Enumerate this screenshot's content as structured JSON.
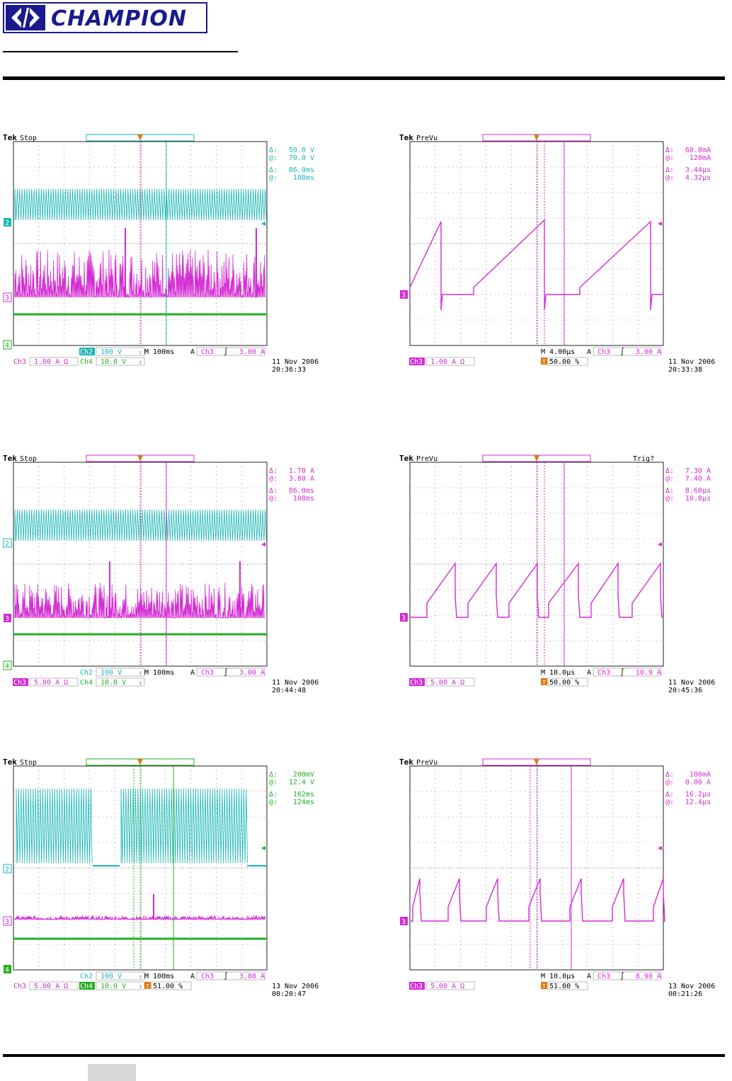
{
  "header": {
    "logo_text": "CHAMPION"
  },
  "scopes": [
    {
      "id": "s1",
      "brand": "Tek",
      "state": "Stop",
      "marker_color": "#1ab5b5",
      "readout": [
        {
          "color": "#1ab5b5",
          "d": "Δ:",
          "v": "50.0 V"
        },
        {
          "color": "#1ab5b5",
          "d": "@:",
          "v": "70.0 V"
        },
        {
          "color": "#1ab5b5",
          "d": "Δ:",
          "v": "86.0ms"
        },
        {
          "color": "#1ab5b5",
          "d": "@:",
          "v": "108ms"
        }
      ],
      "left_labels": [
        {
          "t": "2",
          "c": "#1ab5b5",
          "f": true
        },
        {
          "t": "3",
          "c": "#d42bd4",
          "f": false
        },
        {
          "t": "4",
          "c": "#22b022",
          "f": false
        }
      ],
      "bottom_ch": [
        {
          "n": "Ch2",
          "c": "#1ab5b5",
          "f": true,
          "v": "100 V",
          "s": "↕"
        },
        {
          "n": "Ch3",
          "c": "#d42bd4",
          "f": false,
          "v": "1.00 A Ω",
          "s": ""
        },
        {
          "n": "Ch4",
          "c": "#22b022",
          "f": false,
          "v": "10.0 V",
          "s": "↕"
        }
      ],
      "timebase": "M 100ms",
      "trig_src": "Ch3",
      "trig_lvl": "3.00 A",
      "trig_pct": "",
      "date": "11 Nov 2006",
      "time": "20:36:33"
    },
    {
      "id": "s2",
      "brand": "Tek",
      "state": "PreVu",
      "marker_color": "#d42bd4",
      "readout": [
        {
          "color": "#d42bd4",
          "d": "Δ:",
          "v": "60.0mA"
        },
        {
          "color": "#d42bd4",
          "d": "@:",
          "v": "120mA"
        },
        {
          "color": "#d42bd4",
          "d": "Δ:",
          "v": "3.44μs"
        },
        {
          "color": "#d42bd4",
          "d": "@:",
          "v": "4.32μs"
        }
      ],
      "left_labels": [
        {
          "t": "3",
          "c": "#d42bd4",
          "f": true
        }
      ],
      "bottom_ch": [
        {
          "n": "Ch3",
          "c": "#d42bd4",
          "f": true,
          "v": "1.00 A Ω",
          "s": ""
        }
      ],
      "timebase": "M 4.00μs",
      "trig_src": "Ch3",
      "trig_lvl": "3.00 A",
      "trig_pct": "50.00 %",
      "date": "11 Nov 2006",
      "time": "20:33:38"
    },
    {
      "id": "s3",
      "brand": "Tek",
      "state": "Stop",
      "marker_color": "#d42bd4",
      "readout": [
        {
          "color": "#d42bd4",
          "d": "Δ:",
          "v": "1.70 A"
        },
        {
          "color": "#d42bd4",
          "d": "@:",
          "v": "3.80 A"
        },
        {
          "color": "#d42bd4",
          "d": "Δ:",
          "v": "86.0ms"
        },
        {
          "color": "#d42bd4",
          "d": "@:",
          "v": "108ms"
        }
      ],
      "left_labels": [
        {
          "t": "2",
          "c": "#1ab5b5",
          "f": false
        },
        {
          "t": "3",
          "c": "#d42bd4",
          "f": true
        },
        {
          "t": "4",
          "c": "#22b022",
          "f": false
        }
      ],
      "bottom_ch": [
        {
          "n": "Ch2",
          "c": "#1ab5b5",
          "f": false,
          "v": "100 V",
          "s": "↕"
        },
        {
          "n": "Ch3",
          "c": "#d42bd4",
          "f": true,
          "v": "5.00 A Ω",
          "s": ""
        },
        {
          "n": "Ch4",
          "c": "#22b022",
          "f": false,
          "v": "10.0 V",
          "s": "↕"
        }
      ],
      "timebase": "M 100ms",
      "trig_src": "Ch3",
      "trig_lvl": "3.00 A",
      "trig_pct": "",
      "date": "11 Nov 2006",
      "time": "20:44:48"
    },
    {
      "id": "s4",
      "brand": "Tek",
      "state": "PreVu",
      "extra": "Trig?",
      "marker_color": "#d42bd4",
      "readout": [
        {
          "color": "#d42bd4",
          "d": "Δ:",
          "v": "7.30 A"
        },
        {
          "color": "#d42bd4",
          "d": "@:",
          "v": "7.40 A"
        },
        {
          "color": "#d42bd4",
          "d": "Δ:",
          "v": "8.60μs"
        },
        {
          "color": "#d42bd4",
          "d": "@:",
          "v": "10.8μs"
        }
      ],
      "left_labels": [
        {
          "t": "3",
          "c": "#d42bd4",
          "f": true
        }
      ],
      "bottom_ch": [
        {
          "n": "Ch3",
          "c": "#d42bd4",
          "f": true,
          "v": "5.00 A Ω",
          "s": ""
        }
      ],
      "timebase": "M 10.0μs",
      "trig_src": "Ch3",
      "trig_lvl": "10.9 A",
      "trig_pct": "50.00 %",
      "date": "11 Nov 2006",
      "time": "20:45:36"
    },
    {
      "id": "s5",
      "brand": "Tek",
      "state": "Stop",
      "marker_color": "#22b022",
      "readout": [
        {
          "color": "#22b022",
          "d": "Δ:",
          "v": "200mV"
        },
        {
          "color": "#22b022",
          "d": "@:",
          "v": "12.4 V"
        },
        {
          "color": "#22b022",
          "d": "Δ:",
          "v": "162ms"
        },
        {
          "color": "#22b022",
          "d": "@:",
          "v": "124ms"
        }
      ],
      "left_labels": [
        {
          "t": "2",
          "c": "#1ab5b5",
          "f": false
        },
        {
          "t": "3",
          "c": "#d42bd4",
          "f": false
        },
        {
          "t": "4",
          "c": "#22b022",
          "f": true
        }
      ],
      "bottom_ch": [
        {
          "n": "Ch2",
          "c": "#1ab5b5",
          "f": false,
          "v": "100 V",
          "s": "↕"
        },
        {
          "n": "Ch3",
          "c": "#d42bd4",
          "f": false,
          "v": "5.00 A Ω",
          "s": ""
        },
        {
          "n": "Ch4",
          "c": "#22b022",
          "f": true,
          "v": "10.0 V",
          "s": "↕"
        }
      ],
      "timebase": "M 100ms",
      "trig_src": "Ch3",
      "trig_lvl": "3.80 A",
      "trig_pct": "51.00 %",
      "date": "13 Nov 2006",
      "time": "00:20:47"
    },
    {
      "id": "s6",
      "brand": "Tek",
      "state": "PreVu",
      "marker_color": "#d42bd4",
      "readout": [
        {
          "color": "#d42bd4",
          "d": "Δ:",
          "v": "100mA"
        },
        {
          "color": "#d42bd4",
          "d": "@:",
          "v": "0.00 A"
        },
        {
          "color": "#d42bd4",
          "d": "Δ:",
          "v": "16.2μs"
        },
        {
          "color": "#d42bd4",
          "d": "@:",
          "v": "12.4μs"
        }
      ],
      "left_labels": [
        {
          "t": "3",
          "c": "#d42bd4",
          "f": true
        }
      ],
      "bottom_ch": [
        {
          "n": "Ch3",
          "c": "#d42bd4",
          "f": true,
          "v": "5.00 A Ω",
          "s": ""
        }
      ],
      "timebase": "M 10.0μs",
      "trig_src": "Ch3",
      "trig_lvl": "8.90 A",
      "trig_pct": "51.00 %",
      "date": "13 Nov 2006",
      "time": "00:21:26"
    }
  ],
  "colors": {
    "ch2": "#1ab5b5",
    "ch3": "#d42bd4",
    "ch4": "#22b022",
    "trigger": "#e07a10"
  }
}
